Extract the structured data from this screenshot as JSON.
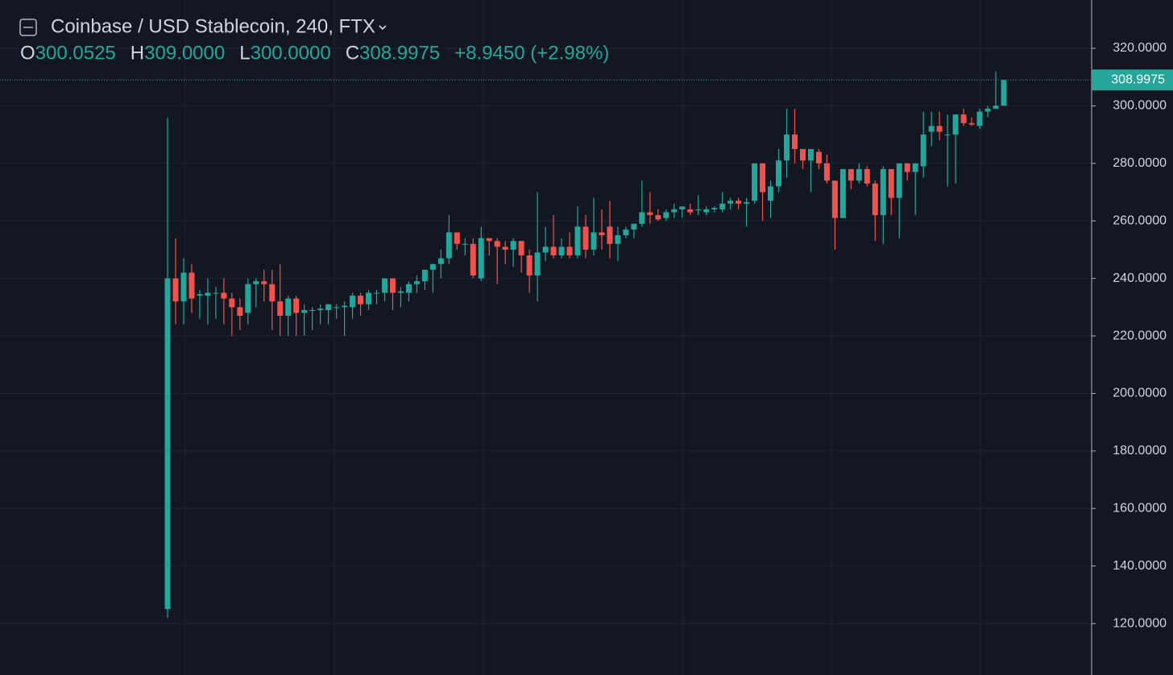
{
  "chart_data": {
    "type": "candlestick",
    "title": "Coinbase / USD Stablecoin, 240, FTX",
    "ohlc_legend": [
      {
        "key": "O",
        "value": "300.0525"
      },
      {
        "key": "H",
        "value": "309.0000"
      },
      {
        "key": "L",
        "value": "300.0000"
      },
      {
        "key": "C",
        "value": "308.9975"
      }
    ],
    "change": "+8.9450 (+2.98%)",
    "up_color": "#26a69a",
    "down_color": "#ef5350",
    "ylim": [
      102.1,
      336.8
    ],
    "yticks": [
      {
        "value": 120,
        "label": "120.0000"
      },
      {
        "value": 140,
        "label": "140.0000"
      },
      {
        "value": 160,
        "label": "160.0000"
      },
      {
        "value": 180,
        "label": "180.0000"
      },
      {
        "value": 200,
        "label": "200.0000"
      },
      {
        "value": 220,
        "label": "220.0000"
      },
      {
        "value": 240,
        "label": "240.0000"
      },
      {
        "value": 260,
        "label": "260.0000"
      },
      {
        "value": 280,
        "label": "280.0000"
      },
      {
        "value": 300,
        "label": "300.0000"
      },
      {
        "value": 320,
        "label": "320.0000"
      }
    ],
    "grid": true,
    "open": [
      125,
      240,
      232,
      242,
      234,
      234,
      235,
      235,
      233,
      230,
      228,
      238,
      239,
      238,
      232,
      227,
      233,
      228,
      229,
      229,
      229,
      230,
      230,
      230,
      234,
      231,
      235,
      235,
      240,
      235,
      235,
      238,
      239,
      243,
      245,
      247,
      256,
      252,
      252,
      240,
      254,
      253,
      251,
      250,
      253,
      248,
      241,
      249,
      251,
      248,
      251,
      248,
      258,
      250,
      256,
      258,
      252,
      255,
      257,
      259,
      263,
      262,
      261,
      263,
      264,
      264,
      264,
      263,
      264,
      264,
      266,
      267,
      266,
      267,
      280,
      267,
      272,
      281,
      290,
      285,
      281,
      284,
      280,
      274,
      261,
      278,
      274,
      278,
      273,
      262,
      278,
      268,
      280,
      277,
      279,
      291,
      293,
      290,
      290,
      297,
      294,
      293,
      298,
      299,
      300.0525
    ],
    "high": [
      296,
      254,
      247,
      245,
      236,
      240,
      237,
      240,
      235,
      233,
      240,
      240,
      243,
      243,
      245,
      234,
      234,
      231,
      230,
      231,
      231,
      231,
      232,
      235,
      235,
      236,
      236,
      240,
      240,
      237,
      239,
      241,
      243,
      245,
      250,
      262,
      256,
      254,
      254,
      258,
      254,
      254,
      253,
      254,
      253,
      250,
      270,
      258,
      262,
      254,
      256,
      265,
      262,
      268,
      264,
      267,
      258,
      258,
      259,
      274,
      270,
      264,
      264,
      266,
      265,
      266,
      269,
      265,
      265,
      270,
      268,
      268,
      268,
      280,
      280,
      274,
      285,
      299,
      299,
      285,
      285,
      285,
      283,
      274,
      278,
      278,
      280,
      279,
      274,
      279,
      278,
      280,
      280,
      280,
      298,
      298,
      298,
      297,
      297,
      299,
      296,
      299,
      300,
      312,
      309
    ],
    "low": [
      122,
      224,
      224,
      228,
      226,
      224,
      226,
      224,
      220,
      222,
      224,
      230,
      232,
      222,
      220,
      220,
      220,
      220,
      222,
      224,
      224,
      226,
      220,
      226,
      227,
      229,
      231,
      232,
      229,
      230,
      232,
      235,
      236,
      235,
      240,
      245,
      250,
      248,
      240,
      239,
      248,
      238,
      245,
      244,
      242,
      235,
      232,
      246,
      247,
      247,
      247,
      247,
      247,
      248,
      250,
      247,
      246,
      254,
      254,
      258,
      259,
      260,
      260,
      261,
      261,
      262,
      262,
      262,
      263,
      263,
      264,
      264,
      258,
      266,
      260,
      261,
      270,
      275,
      280,
      278,
      270,
      278,
      273,
      250,
      261,
      271,
      273,
      272,
      253,
      252,
      262,
      254,
      274,
      262,
      275,
      286,
      288,
      272,
      273,
      293,
      293,
      292,
      296,
      299,
      300
    ],
    "close": [
      240,
      232,
      242,
      233,
      234.5,
      235,
      235,
      233,
      230,
      227,
      238,
      239,
      238,
      232,
      227,
      233,
      228,
      229,
      229,
      229.5,
      231,
      230,
      230.5,
      234,
      231,
      235,
      235,
      240,
      235,
      235.5,
      238,
      239,
      243,
      245,
      247,
      256,
      252,
      252,
      241,
      254,
      253,
      251,
      250,
      253,
      248,
      241,
      249,
      251,
      248,
      251,
      248,
      258,
      250,
      256,
      255,
      252,
      255,
      257,
      259,
      263,
      262,
      260.5,
      263,
      264,
      265,
      263,
      264,
      264,
      264.5,
      266,
      267,
      266,
      266.5,
      280,
      270,
      272,
      281,
      290,
      285,
      281,
      285,
      280,
      274,
      261,
      278,
      274,
      278,
      273,
      262,
      278,
      268,
      280,
      277,
      280,
      290,
      293,
      291,
      290,
      297,
      294,
      293.5,
      298,
      299,
      300.0525,
      308.9975
    ]
  }
}
